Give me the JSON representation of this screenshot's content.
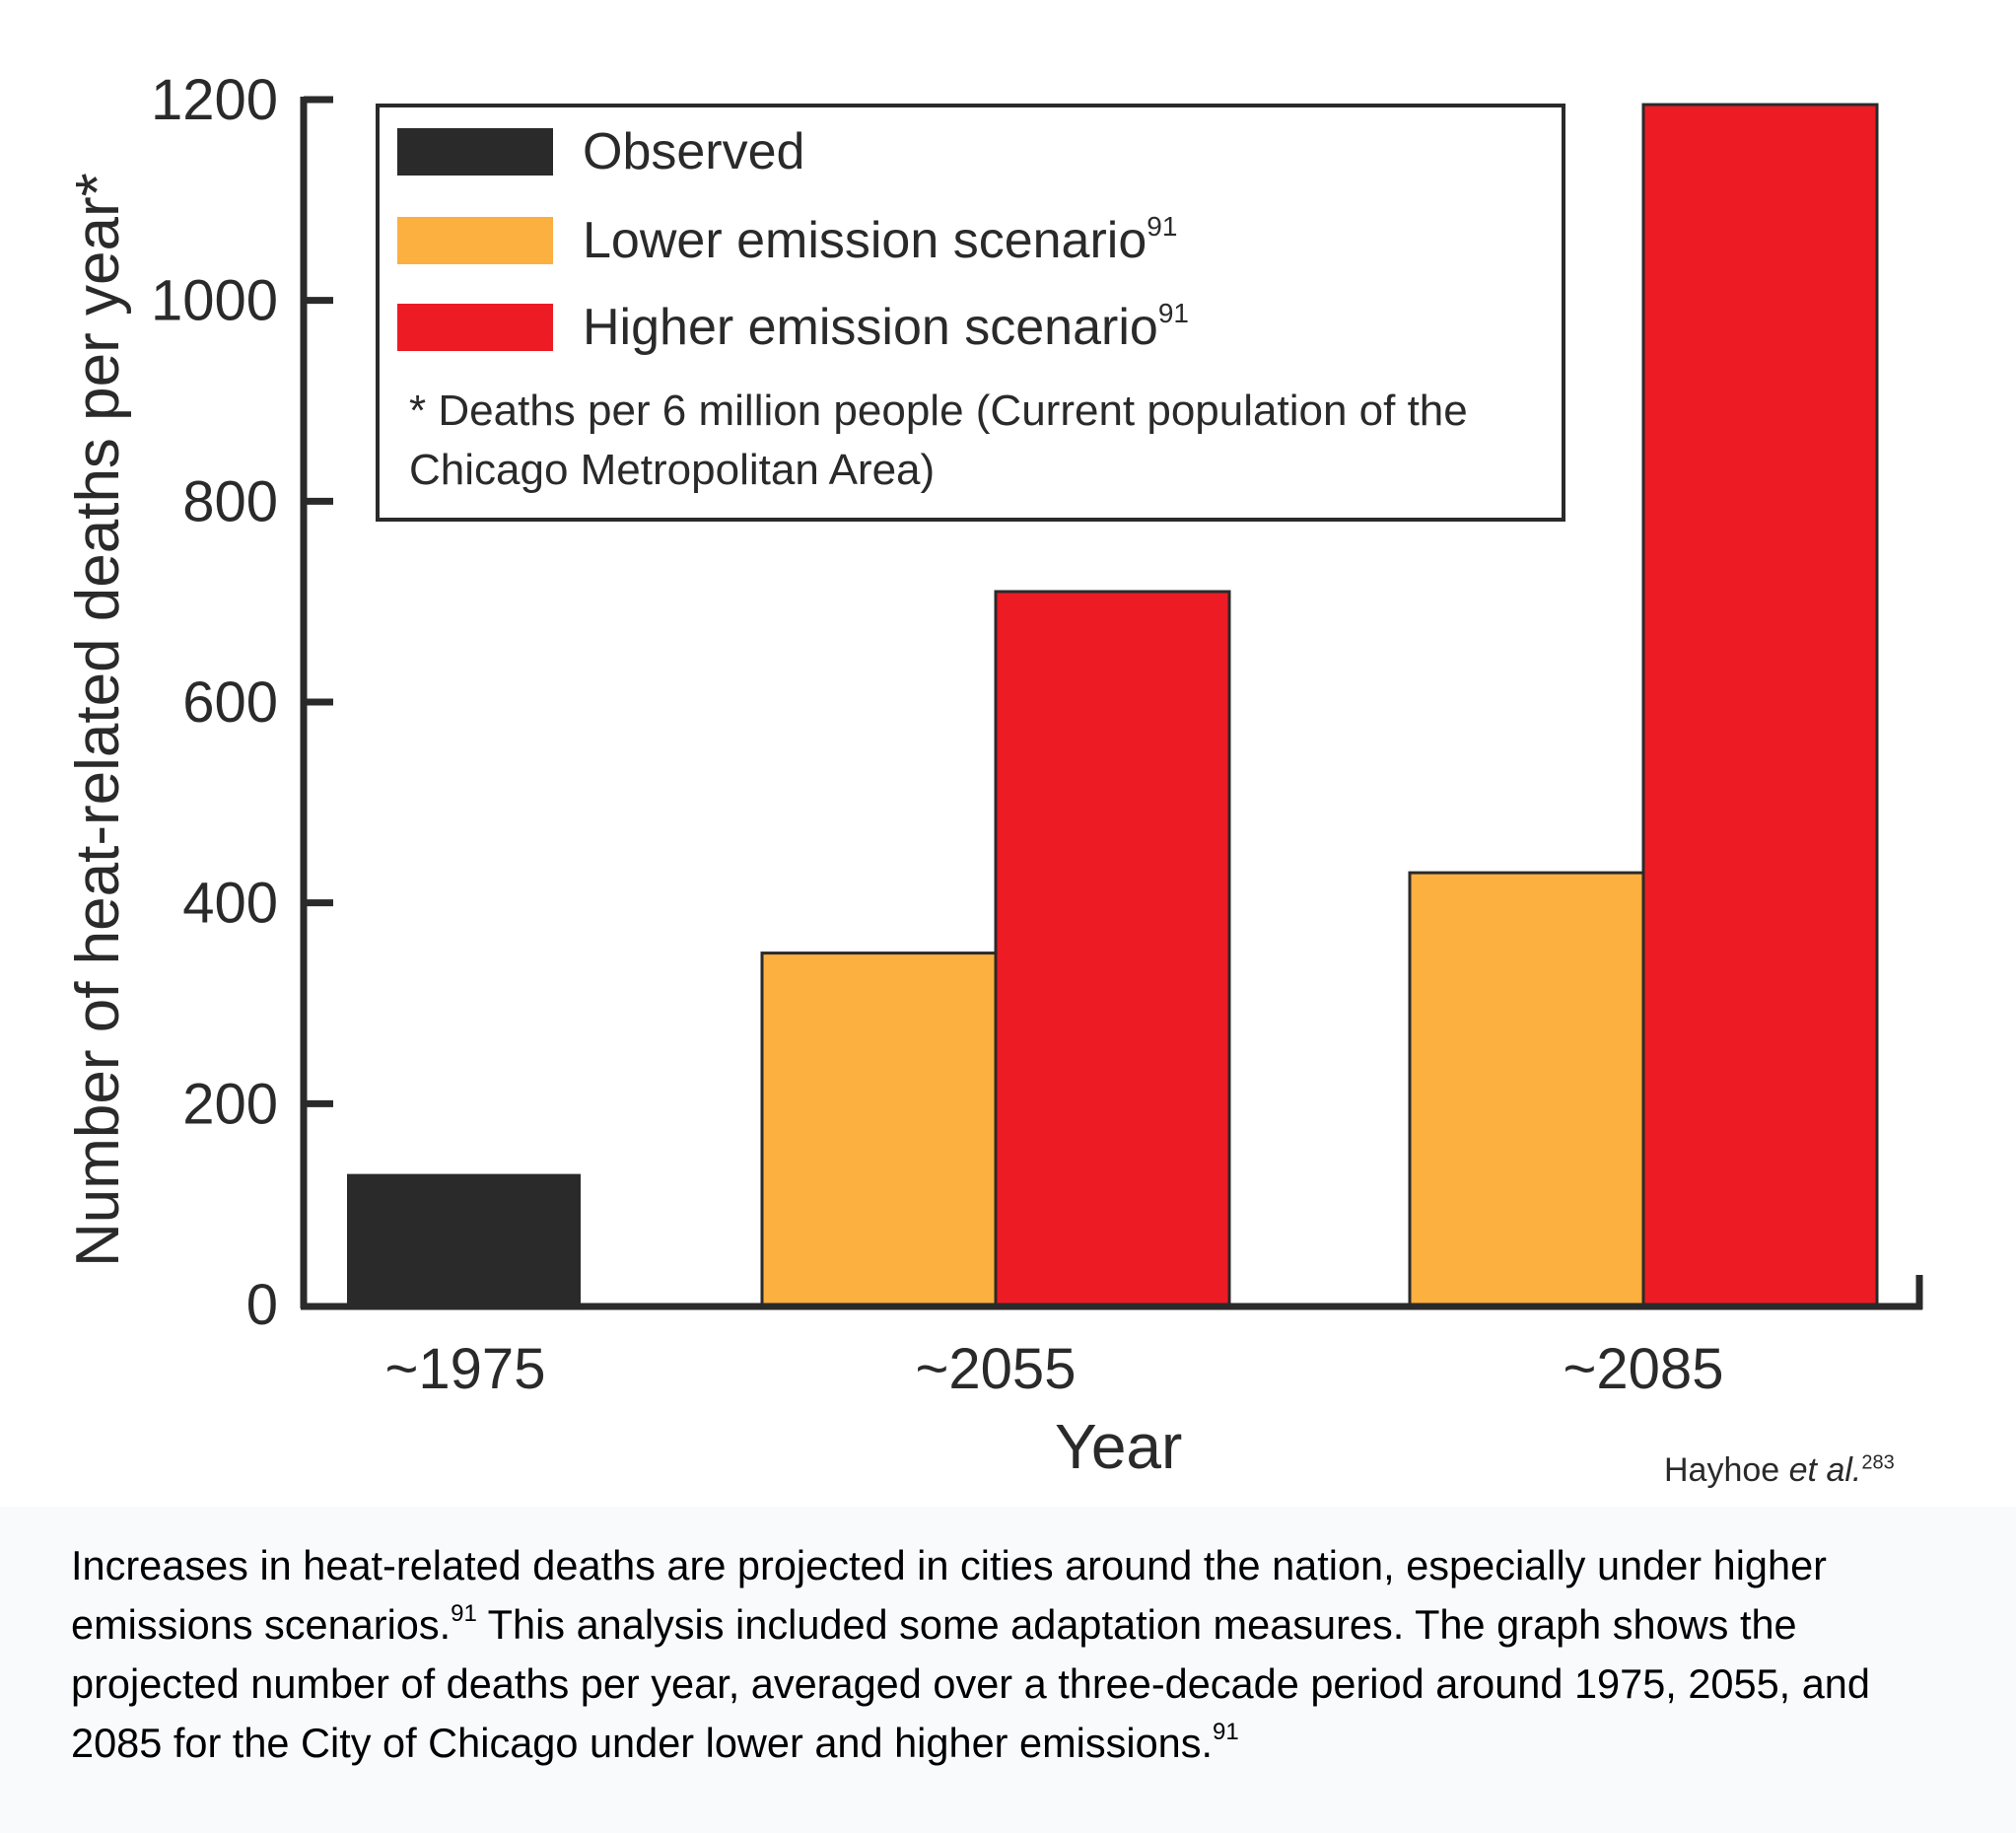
{
  "chart_data": {
    "type": "bar",
    "title": "",
    "xlabel": "Year",
    "ylabel": "Number of heat-related deaths per year*",
    "ylim": [
      0,
      1200
    ],
    "yticks": [
      0,
      200,
      400,
      600,
      800,
      1000,
      1200
    ],
    "ytick_labels": [
      "0",
      "200",
      "400",
      "600",
      "800",
      "1000",
      "1200"
    ],
    "categories": [
      "~1975",
      "~2055",
      "~2085"
    ],
    "grid": false,
    "legend_position": "top-left-inside",
    "series": [
      {
        "name": "Observed",
        "color": "#2b2a2a",
        "values": [
          130,
          null,
          null
        ]
      },
      {
        "name": "Lower emission scenario",
        "superscript": "91",
        "color": "#fbb040",
        "values": [
          null,
          350,
          430
        ]
      },
      {
        "name": "Higher emission scenario",
        "superscript": "91",
        "color": "#ed1c24",
        "values": [
          null,
          710,
          1195
        ]
      }
    ],
    "legend_note": "* Deaths per 6 million people (Current population of the Chicago Metropolitan Area)",
    "source": {
      "text": "Hayhoe ",
      "italic": "et al.",
      "superscript": "283"
    }
  },
  "caption": {
    "part1": "Increases in heat-related deaths are projected in cities around the nation, especially under higher emissions scenarios.",
    "sup1": "91",
    "part2": " This analysis included some adaptation measures. The graph shows the projected number of deaths per year, averaged over a three-decade period around 1975, 2055, and 2085 for the City of Chicago under lower and higher emissions.",
    "sup2": "91"
  }
}
